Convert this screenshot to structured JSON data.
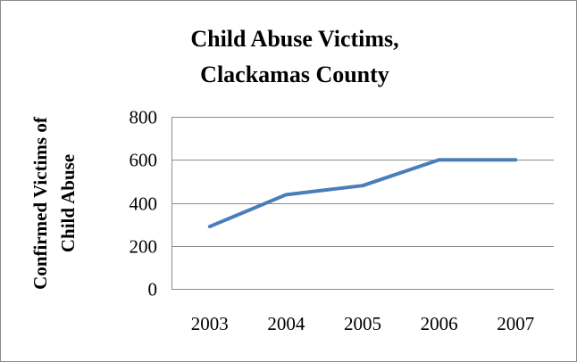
{
  "chart_data": {
    "type": "line",
    "title_lines": [
      "Child Abuse Victims,",
      "Clackamas County"
    ],
    "xlabel": "",
    "ylabel_lines": [
      "Confirmed Victims of",
      "Child Abuse"
    ],
    "categories": [
      "2003",
      "2004",
      "2005",
      "2006",
      "2007"
    ],
    "series": [
      {
        "values": [
          290,
          438,
          480,
          600,
          600
        ],
        "color": "#4a7ebb"
      }
    ],
    "ylim": [
      0,
      800
    ],
    "yticks": [
      0,
      200,
      400,
      600,
      800
    ],
    "grid": true,
    "legend": "none"
  }
}
